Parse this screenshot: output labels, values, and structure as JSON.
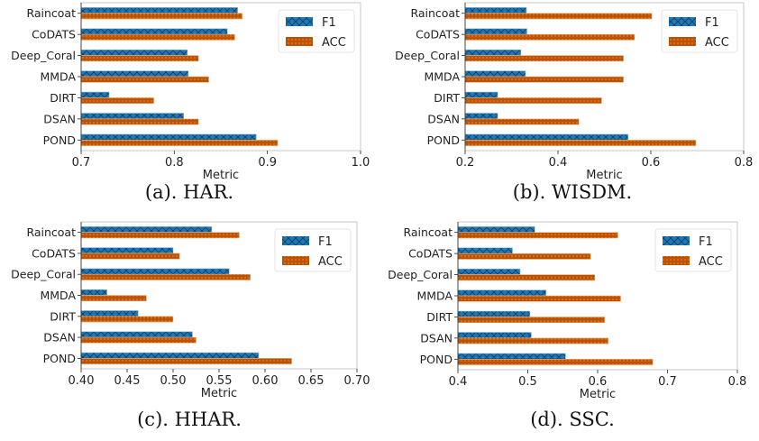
{
  "colors": {
    "F1": "#1f77b4",
    "ACC": "#e3690c",
    "F1_hatch": "#0d3d66",
    "ACC_hatch": "#7a3300"
  },
  "chart_data": [
    {
      "type": "bar",
      "orientation": "horizontal",
      "caption": "(a). HAR.",
      "xlabel": "Metric",
      "xlim": [
        0.7,
        1.0
      ],
      "xticks": [
        "0.7",
        "0.8",
        "0.9",
        "1.0"
      ],
      "legend": "top-right",
      "categories": [
        "Raincoat",
        "CoDATS",
        "Deep_Coral",
        "MMDA",
        "DIRT",
        "DSAN",
        "POND"
      ],
      "series": [
        {
          "name": "F1",
          "values": [
            0.868,
            0.857,
            0.814,
            0.815,
            0.73,
            0.81,
            0.888
          ]
        },
        {
          "name": "ACC",
          "values": [
            0.873,
            0.865,
            0.826,
            0.837,
            0.778,
            0.826,
            0.911
          ]
        }
      ]
    },
    {
      "type": "bar",
      "orientation": "horizontal",
      "caption": "(b). WISDM.",
      "xlabel": "Metric",
      "xlim": [
        0.2,
        0.8
      ],
      "xticks": [
        "0.2",
        "0.4",
        "0.6",
        "0.8"
      ],
      "legend": "top-right",
      "categories": [
        "Raincoat",
        "CoDATS",
        "Deep_Coral",
        "MMDA",
        "DIRT",
        "DSAN",
        "POND"
      ],
      "series": [
        {
          "name": "F1",
          "values": [
            0.332,
            0.333,
            0.32,
            0.33,
            0.27,
            0.27,
            0.551
          ]
        },
        {
          "name": "ACC",
          "values": [
            0.602,
            0.565,
            0.541,
            0.541,
            0.494,
            0.445,
            0.697
          ]
        }
      ]
    },
    {
      "type": "bar",
      "orientation": "horizontal",
      "caption": "(c). HHAR.",
      "xlabel": "Metric",
      "xlim": [
        0.4,
        0.7
      ],
      "xticks": [
        "0.40",
        "0.45",
        "0.50",
        "0.55",
        "0.60",
        "0.65",
        "0.70"
      ],
      "legend": "top-right",
      "categories": [
        "Raincoat",
        "CoDATS",
        "Deep_Coral",
        "MMDA",
        "DIRT",
        "DSAN",
        "POND"
      ],
      "series": [
        {
          "name": "F1",
          "values": [
            0.542,
            0.5,
            0.561,
            0.428,
            0.462,
            0.521,
            0.593
          ]
        },
        {
          "name": "ACC",
          "values": [
            0.572,
            0.507,
            0.584,
            0.471,
            0.5,
            0.525,
            0.629
          ]
        }
      ]
    },
    {
      "type": "bar",
      "orientation": "horizontal",
      "caption": "(d). SSC.",
      "xlabel": "Metric",
      "xlim": [
        0.4,
        0.8
      ],
      "xticks": [
        "0.4",
        "0.5",
        "0.6",
        "0.7",
        "0.8"
      ],
      "legend": "top-right",
      "categories": [
        "Raincoat",
        "CoDATS",
        "Deep_Coral",
        "MMDA",
        "DIRT",
        "DSAN",
        "POND"
      ],
      "series": [
        {
          "name": "F1",
          "values": [
            0.51,
            0.478,
            0.489,
            0.526,
            0.503,
            0.505,
            0.554
          ]
        },
        {
          "name": "ACC",
          "values": [
            0.629,
            0.59,
            0.596,
            0.633,
            0.61,
            0.615,
            0.679
          ]
        }
      ]
    }
  ]
}
